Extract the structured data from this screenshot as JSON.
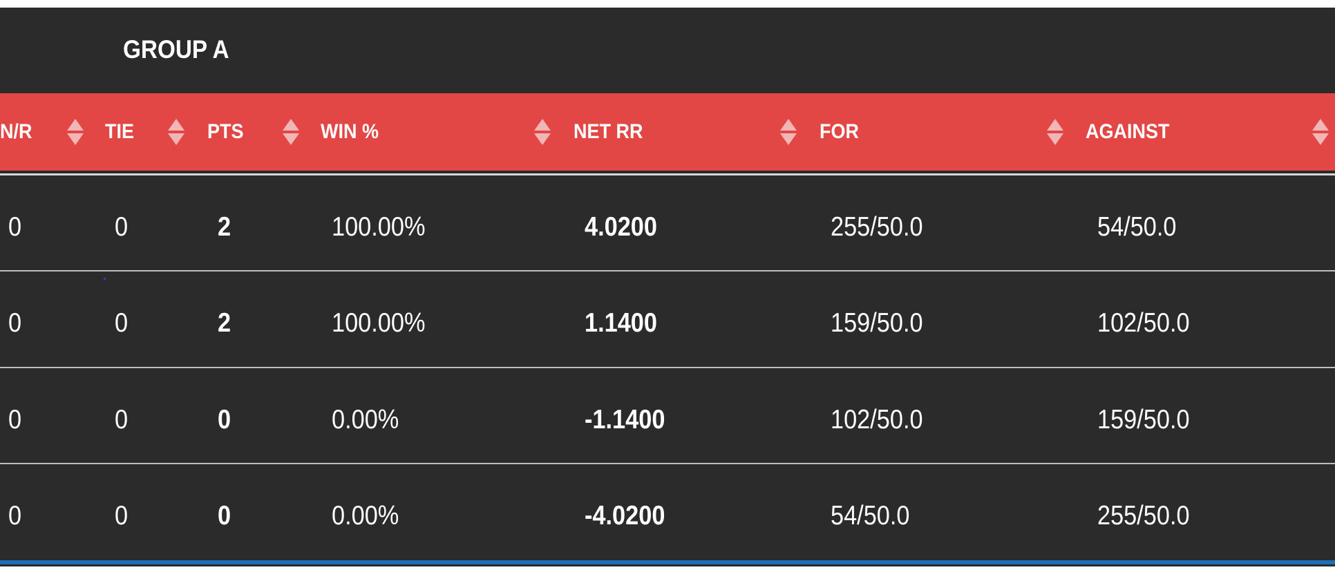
{
  "group_title": "GROUP A",
  "headers": {
    "nr": "N/R",
    "tie": "TIE",
    "pts": "PTS",
    "win_pct": "WIN %",
    "net_rr": "NET RR",
    "for": "FOR",
    "against": "AGAINST"
  },
  "rows": [
    {
      "nr": "0",
      "tie": "0",
      "pts": "2",
      "win_pct": "100.00%",
      "net_rr": "4.0200",
      "for": "255/50.0",
      "against": "54/50.0"
    },
    {
      "nr": "0",
      "tie": "0",
      "pts": "2",
      "win_pct": "100.00%",
      "net_rr": "1.1400",
      "for": "159/50.0",
      "against": "102/50.0"
    },
    {
      "nr": "0",
      "tie": "0",
      "pts": "0",
      "win_pct": "0.00%",
      "net_rr": "-1.1400",
      "for": "102/50.0",
      "against": "159/50.0"
    },
    {
      "nr": "0",
      "tie": "0",
      "pts": "0",
      "win_pct": "0.00%",
      "net_rr": "-4.0200",
      "for": "54/50.0",
      "against": "255/50.0"
    }
  ],
  "colors": {
    "background": "#2b2b2b",
    "header": "#e24746",
    "sort_icon": "#f1b6b5",
    "text": "#ffffff",
    "bottom_bar": "#1f6fb8"
  },
  "icons": {
    "sort": "sort-arrows-icon"
  }
}
